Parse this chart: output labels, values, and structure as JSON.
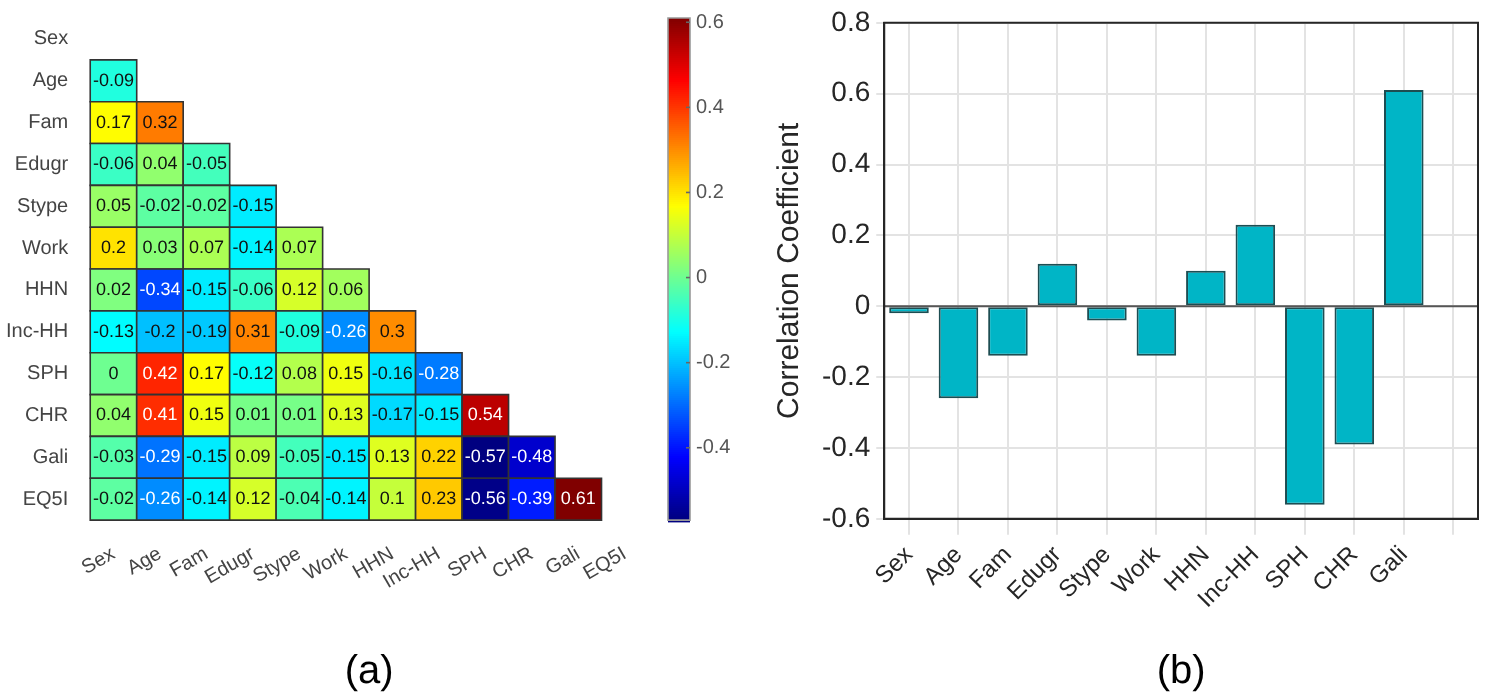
{
  "chart_data": [
    {
      "type": "heatmap",
      "categories": [
        "Sex",
        "Age",
        "Fam",
        "Edugr",
        "Stype",
        "Work",
        "HHN",
        "Inc-HH",
        "SPH",
        "CHR",
        "Gali",
        "EQ5I"
      ],
      "y_categories": [
        "Sex",
        "Age",
        "Fam",
        "Edugr",
        "Stype",
        "Work",
        "HHN",
        "Inc-HH",
        "SPH",
        "CHR",
        "Gali",
        "EQ5I"
      ],
      "cells": [
        [
          null,
          null,
          null,
          null,
          null,
          null,
          null,
          null,
          null,
          null,
          null,
          null
        ],
        [
          -0.09,
          null,
          null,
          null,
          null,
          null,
          null,
          null,
          null,
          null,
          null,
          null
        ],
        [
          0.17,
          0.32,
          null,
          null,
          null,
          null,
          null,
          null,
          null,
          null,
          null,
          null
        ],
        [
          -0.06,
          0.04,
          -0.05,
          null,
          null,
          null,
          null,
          null,
          null,
          null,
          null,
          null
        ],
        [
          0.05,
          -0.02,
          -0.02,
          -0.15,
          null,
          null,
          null,
          null,
          null,
          null,
          null,
          null
        ],
        [
          0.2,
          0.03,
          0.07,
          -0.14,
          0.07,
          null,
          null,
          null,
          null,
          null,
          null,
          null
        ],
        [
          0.02,
          -0.34,
          -0.15,
          -0.06,
          0.12,
          0.06,
          null,
          null,
          null,
          null,
          null,
          null
        ],
        [
          -0.13,
          -0.2,
          -0.19,
          0.31,
          -0.09,
          -0.26,
          0.3,
          null,
          null,
          null,
          null,
          null
        ],
        [
          0,
          0.42,
          0.17,
          -0.12,
          0.08,
          0.15,
          -0.16,
          -0.28,
          null,
          null,
          null,
          null
        ],
        [
          0.04,
          0.41,
          0.15,
          0.01,
          0.01,
          0.13,
          -0.17,
          -0.15,
          0.54,
          null,
          null,
          null
        ],
        [
          -0.03,
          -0.29,
          -0.15,
          0.09,
          -0.05,
          -0.15,
          0.13,
          0.22,
          -0.57,
          -0.48,
          null,
          null
        ],
        [
          -0.02,
          -0.26,
          -0.14,
          0.12,
          -0.04,
          -0.14,
          0.1,
          0.23,
          -0.56,
          -0.39,
          0.61,
          null
        ]
      ],
      "data_labels": true,
      "clim": [
        -0.57,
        0.61
      ],
      "cticks": [
        -0.4,
        -0.2,
        0,
        0.2,
        0.4,
        0.6
      ],
      "annotations": [
        "(a)"
      ]
    },
    {
      "type": "bar",
      "categories": [
        "Sex",
        "Age",
        "Fam",
        "Edugr",
        "Stype",
        "Work",
        "HHN",
        "Inc-HH",
        "SPH",
        "CHR",
        "Gali",
        null
      ],
      "values": [
        -0.02,
        -0.26,
        -0.14,
        0.12,
        -0.04,
        -0.14,
        0.1,
        0.23,
        -0.56,
        -0.39,
        0.61,
        null
      ],
      "color": "#00b5c6",
      "ylabel": "Correlation Coefficient",
      "ylim": [
        -0.6,
        0.8
      ],
      "yticks": [
        -0.6,
        -0.4,
        -0.2,
        0,
        0.2,
        0.4,
        0.6,
        0.8
      ],
      "grid": true,
      "ref_lines": [
        {
          "axis": "y",
          "value": 0,
          "color": "#555555"
        }
      ],
      "annotations": [
        "(b)"
      ]
    }
  ]
}
